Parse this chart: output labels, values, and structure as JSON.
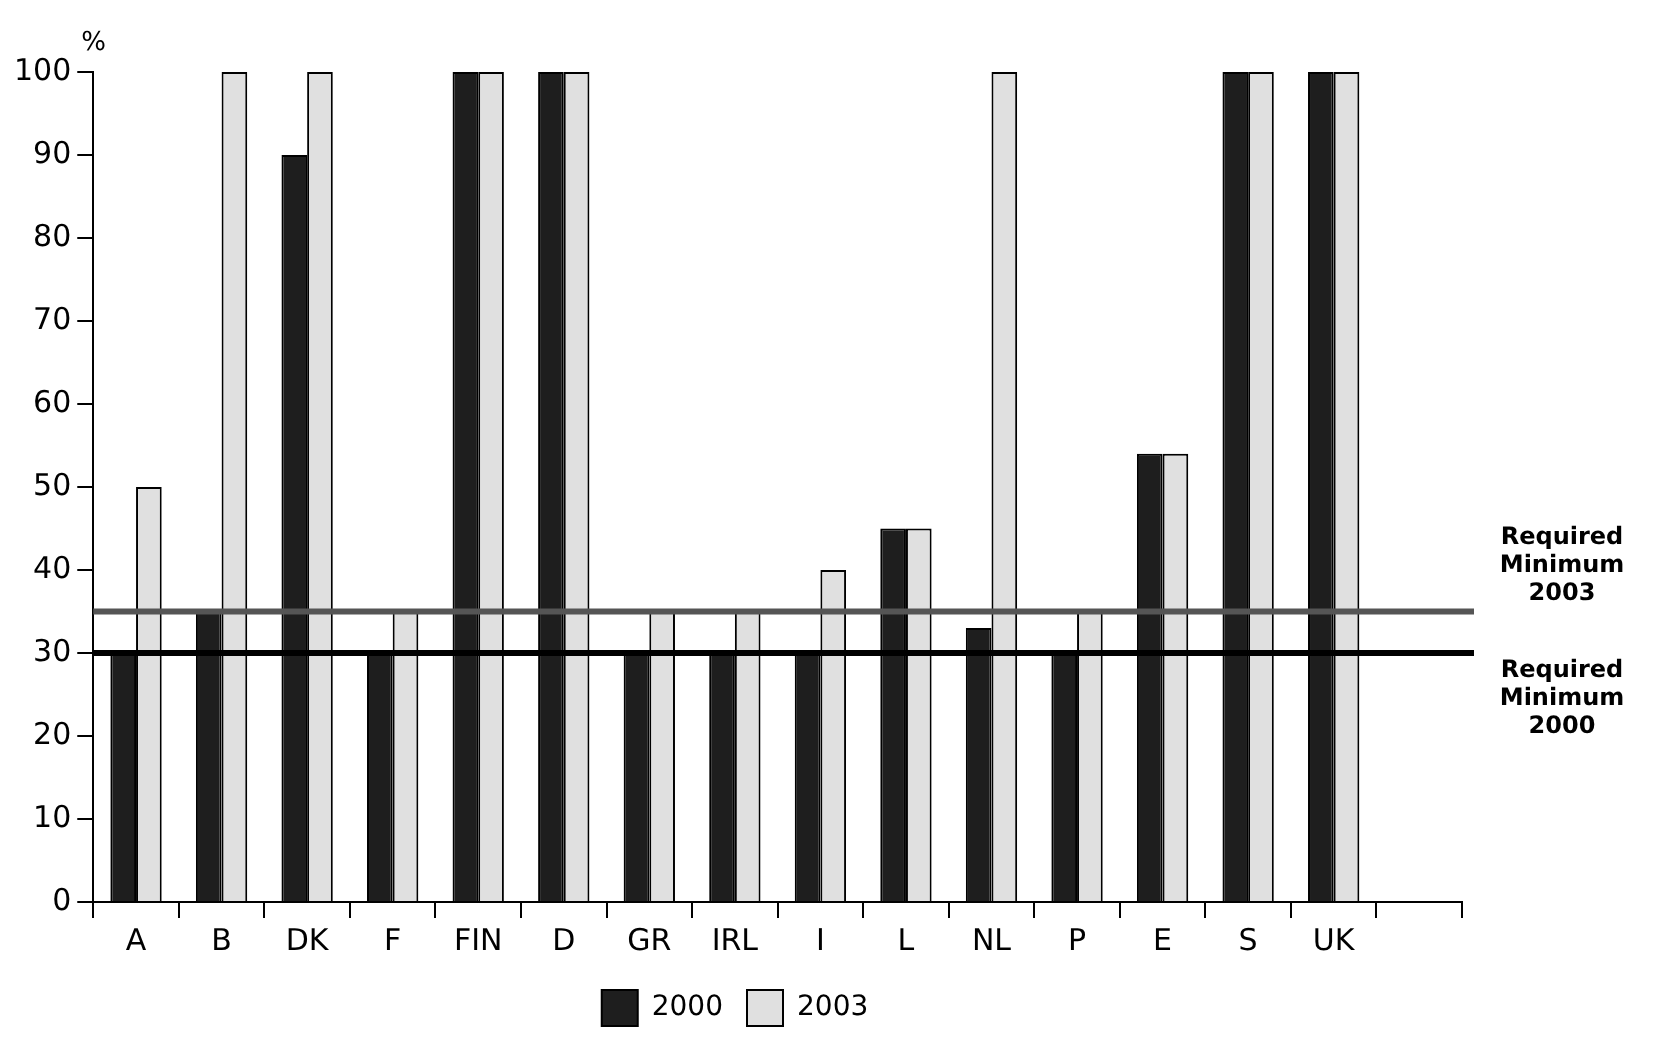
{
  "chart_data": {
    "type": "bar",
    "ylabel": "%",
    "categories": [
      "A",
      "B",
      "DK",
      "F",
      "FIN",
      "D",
      "GR",
      "IRL",
      "I",
      "L",
      "NL",
      "P",
      "E",
      "S",
      "UK",
      null
    ],
    "series": [
      {
        "name": "2000",
        "color": "#1e1e1e",
        "values": [
          30,
          35,
          90,
          30,
          100,
          100,
          30,
          30,
          30,
          45,
          33,
          30,
          54,
          100,
          100,
          null
        ]
      },
      {
        "name": "2003",
        "color": "#e0e0e0",
        "values": [
          50,
          100,
          100,
          35,
          100,
          100,
          35,
          35,
          40,
          45,
          100,
          35,
          54,
          100,
          100,
          null
        ]
      }
    ],
    "ylim": [
      0,
      100
    ],
    "yticks": [
      0,
      10,
      20,
      30,
      40,
      50,
      60,
      70,
      80,
      90,
      100
    ],
    "ref_lines": [
      {
        "axis": "y",
        "value": 35,
        "label": "Required Minimum 2003",
        "color": "#555555"
      },
      {
        "axis": "y",
        "value": 30,
        "label": "Required Minimum 2000",
        "color": "#000000"
      }
    ],
    "grid": false,
    "legend": "bottom"
  }
}
